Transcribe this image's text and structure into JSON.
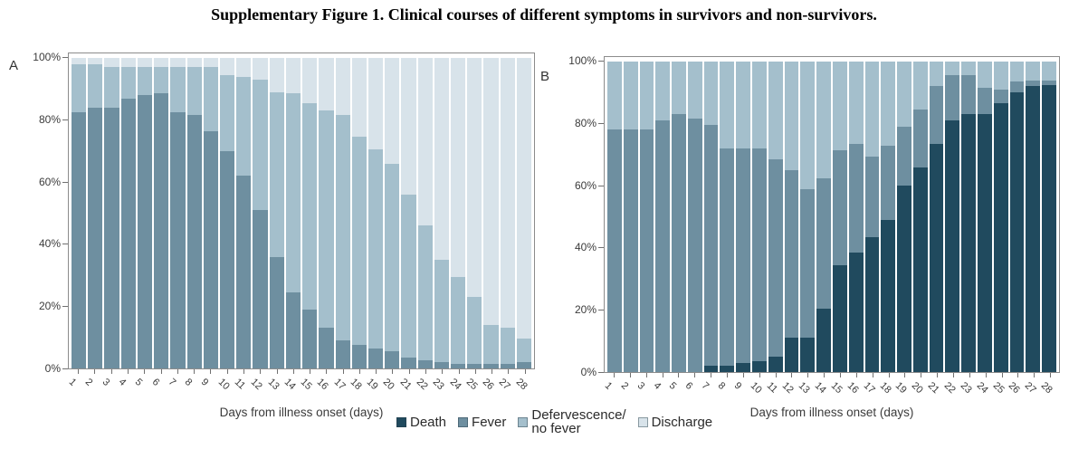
{
  "title": "Supplementary Figure 1. Clinical courses of different symptoms in survivors and non-survivors.",
  "colors": {
    "death": "#204a5e",
    "fever": "#6e8fa0",
    "defervescence": "#a4bfcc",
    "discharge": "#d8e3ea"
  },
  "legend": {
    "items": [
      {
        "label": "Death",
        "color_key": "death"
      },
      {
        "label": "Fever",
        "color_key": "fever"
      },
      {
        "label": "Defervescence/\nno fever",
        "color_key": "defervescence"
      },
      {
        "label": "Discharge",
        "color_key": "discharge"
      }
    ]
  },
  "chart_data": [
    {
      "type": "bar",
      "stacked": true,
      "panel_label": "A",
      "group": "survivors",
      "xlabel": "Days from illness onset (days)",
      "ylabel": "",
      "ylim": [
        0,
        100
      ],
      "yticks": [
        "100%",
        "80%",
        "60%",
        "40%",
        "20%",
        "0%"
      ],
      "categories": [
        1,
        2,
        3,
        4,
        5,
        6,
        7,
        8,
        9,
        10,
        11,
        12,
        13,
        14,
        15,
        16,
        17,
        18,
        19,
        20,
        21,
        22,
        23,
        24,
        25,
        26,
        27,
        28
      ],
      "series": [
        {
          "name": "Death",
          "color_key": "death",
          "values": [
            0,
            0,
            0,
            0,
            0,
            0,
            0,
            0,
            0,
            0,
            0,
            0,
            0,
            0,
            0,
            0,
            0,
            0,
            0,
            0,
            0,
            0,
            0,
            0,
            0,
            0,
            0,
            0
          ]
        },
        {
          "name": "Fever",
          "color_key": "fever",
          "values": [
            82.5,
            84,
            84,
            87,
            88,
            88.5,
            82.5,
            81.5,
            76.5,
            70,
            62,
            51,
            36,
            24.5,
            19,
            13,
            9,
            7.5,
            6.5,
            5.5,
            3.5,
            2.5,
            2,
            1.5,
            1.5,
            1.5,
            1.5,
            2
          ]
        },
        {
          "name": "Defervescence/no fever",
          "color_key": "defervescence",
          "values": [
            15.5,
            14,
            13,
            10,
            9,
            8.5,
            14.5,
            15.5,
            20.5,
            24.5,
            32,
            42,
            53,
            64,
            66.5,
            70,
            72.5,
            67,
            64,
            60.5,
            52.5,
            43.5,
            33,
            28,
            21.5,
            12.5,
            11.5,
            7.5
          ]
        },
        {
          "name": "Discharge",
          "color_key": "discharge",
          "values": [
            2,
            2,
            3,
            3,
            3,
            3,
            3,
            3,
            3,
            5.5,
            6,
            7,
            11,
            11.5,
            14.5,
            17,
            18.5,
            25.5,
            29.5,
            34,
            44,
            54,
            65,
            70.5,
            77,
            86,
            87,
            90.5
          ]
        }
      ]
    },
    {
      "type": "bar",
      "stacked": true,
      "panel_label": "B",
      "group": "non-survivors",
      "xlabel": "Days from illness onset (days)",
      "ylabel": "",
      "ylim": [
        0,
        100
      ],
      "yticks": [
        "100%",
        "80%",
        "60%",
        "40%",
        "20%",
        "0%"
      ],
      "categories": [
        1,
        2,
        3,
        4,
        5,
        6,
        7,
        8,
        9,
        10,
        11,
        12,
        13,
        14,
        15,
        16,
        17,
        18,
        19,
        20,
        21,
        22,
        23,
        24,
        25,
        26,
        27,
        28
      ],
      "series": [
        {
          "name": "Death",
          "color_key": "death",
          "values": [
            0,
            0,
            0,
            0,
            0,
            0,
            2,
            2,
            3,
            3.5,
            5,
            11,
            11,
            20.5,
            34.5,
            38.5,
            43.5,
            49,
            60,
            66,
            73.5,
            81,
            83,
            83,
            86.5,
            90,
            92,
            92.5
          ]
        },
        {
          "name": "Fever",
          "color_key": "fever",
          "values": [
            78,
            78,
            78,
            81,
            83,
            81.5,
            77.5,
            70,
            69,
            68.5,
            63.5,
            54,
            48,
            42,
            37,
            35,
            26,
            24,
            19,
            18.5,
            18.5,
            14.5,
            12.5,
            8.5,
            4.5,
            3.5,
            2,
            1.5
          ]
        },
        {
          "name": "Defervescence/no fever",
          "color_key": "defervescence",
          "values": [
            22,
            22,
            22,
            19,
            17,
            18.5,
            20.5,
            28,
            28,
            28,
            31.5,
            35,
            41,
            37.5,
            28.5,
            26.5,
            30.5,
            27,
            21,
            15.5,
            8,
            4.5,
            4.5,
            8.5,
            9,
            6.5,
            6,
            6
          ]
        },
        {
          "name": "Discharge",
          "color_key": "discharge",
          "values": [
            0,
            0,
            0,
            0,
            0,
            0,
            0,
            0,
            0,
            0,
            0,
            0,
            0,
            0,
            0,
            0,
            0,
            0,
            0,
            0,
            0,
            0,
            0,
            0,
            0,
            0,
            0,
            0
          ]
        }
      ]
    }
  ]
}
